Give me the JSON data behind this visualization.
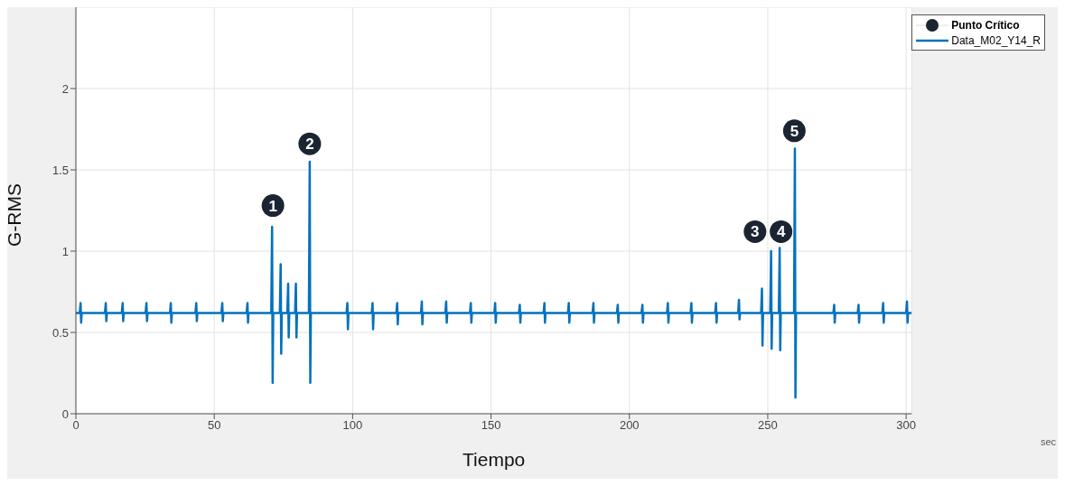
{
  "chart_data": {
    "type": "line",
    "xlabel": "Tiempo",
    "ylabel": "G-RMS",
    "annotations": [
      "sec",
      {
        "text": "1",
        "x": 71.2,
        "y": 1.28
      },
      {
        "text": "2",
        "x": 84.5,
        "y": 1.66
      },
      {
        "text": "3",
        "x": 245.4,
        "y": 1.12
      },
      {
        "text": "4",
        "x": 254.8,
        "y": 1.12
      },
      {
        "text": "5",
        "x": 259.6,
        "y": 1.74
      }
    ],
    "xlim": [
      0,
      302
    ],
    "xticks": [
      0,
      50,
      100,
      150,
      200,
      250,
      300
    ],
    "ylim": [
      0,
      2.5
    ],
    "yticks": [
      0,
      0.5,
      1,
      1.5,
      2
    ],
    "grid": true,
    "legend": "top right",
    "series": [
      {
        "name": "Punto Crítico",
        "type": "scatter",
        "color": "#1b2432",
        "marker": "circle",
        "x": [
          71.2,
          84.5,
          245.4,
          254.8,
          259.6
        ],
        "values": [
          1.28,
          1.66,
          1.12,
          1.12,
          1.74
        ]
      },
      {
        "name": "Data_M02_Y14_R",
        "color": "#0072bd",
        "marker": "none",
        "line_style": "solid",
        "x": [
          0,
          1.4,
          1.7,
          1.9,
          2.1,
          10.5,
          10.8,
          11.0,
          11.2,
          16.6,
          16.9,
          17.1,
          17.3,
          25.2,
          25.5,
          25.7,
          25.9,
          34.0,
          34.3,
          34.5,
          34.7,
          43.2,
          43.5,
          43.7,
          43.9,
          52.6,
          52.9,
          53.1,
          53.3,
          61.7,
          62.0,
          62.2,
          62.4,
          70.6,
          70.9,
          71.1,
          71.3,
          73.7,
          74.0,
          74.2,
          74.4,
          76.4,
          76.7,
          76.9,
          77.1,
          79.2,
          79.5,
          79.7,
          79.9,
          84.2,
          84.5,
          84.7,
          84.9,
          97.8,
          98.1,
          98.3,
          98.5,
          106.9,
          107.2,
          107.4,
          107.6,
          115.8,
          116.1,
          116.3,
          116.5,
          124.7,
          125.0,
          125.2,
          125.4,
          133.5,
          133.8,
          134.0,
          134.2,
          142.4,
          142.7,
          142.9,
          143.1,
          151.2,
          151.5,
          151.7,
          151.9,
          160.1,
          160.4,
          160.6,
          160.8,
          169.0,
          169.3,
          169.5,
          169.7,
          177.8,
          178.1,
          178.3,
          178.5,
          186.7,
          187.0,
          187.2,
          187.4,
          195.5,
          195.8,
          196.0,
          196.2,
          204.4,
          204.7,
          204.9,
          205.1,
          213.6,
          213.9,
          214.1,
          214.3,
          222.1,
          222.4,
          222.6,
          222.8,
          231.0,
          231.3,
          231.5,
          231.7,
          239.3,
          239.6,
          239.8,
          240.0,
          247.6,
          247.9,
          248.1,
          248.3,
          250.9,
          251.2,
          251.4,
          251.6,
          254.0,
          254.3,
          254.5,
          254.7,
          259.5,
          259.8,
          260.0,
          260.2,
          273.7,
          274.0,
          274.2,
          274.4,
          282.5,
          282.8,
          283.0,
          283.2,
          291.4,
          291.7,
          291.9,
          292.1,
          300.0,
          300.3,
          300.5,
          300.7,
          302
        ],
        "values": [
          0.62,
          0.62,
          0.68,
          0.56,
          0.62,
          0.62,
          0.68,
          0.57,
          0.62,
          0.62,
          0.68,
          0.57,
          0.62,
          0.62,
          0.68,
          0.57,
          0.62,
          0.62,
          0.68,
          0.56,
          0.62,
          0.62,
          0.68,
          0.57,
          0.62,
          0.62,
          0.68,
          0.57,
          0.62,
          0.62,
          0.68,
          0.56,
          0.62,
          0.62,
          1.15,
          0.19,
          0.62,
          0.62,
          0.92,
          0.37,
          0.62,
          0.62,
          0.8,
          0.47,
          0.62,
          0.62,
          0.8,
          0.47,
          0.62,
          0.62,
          1.55,
          0.19,
          0.62,
          0.62,
          0.68,
          0.52,
          0.62,
          0.62,
          0.68,
          0.52,
          0.62,
          0.62,
          0.68,
          0.55,
          0.62,
          0.62,
          0.69,
          0.55,
          0.62,
          0.62,
          0.69,
          0.56,
          0.62,
          0.62,
          0.68,
          0.56,
          0.62,
          0.62,
          0.68,
          0.56,
          0.62,
          0.62,
          0.67,
          0.56,
          0.62,
          0.62,
          0.68,
          0.56,
          0.62,
          0.62,
          0.68,
          0.56,
          0.62,
          0.62,
          0.68,
          0.56,
          0.62,
          0.62,
          0.67,
          0.56,
          0.62,
          0.62,
          0.67,
          0.56,
          0.62,
          0.62,
          0.68,
          0.56,
          0.62,
          0.62,
          0.68,
          0.56,
          0.62,
          0.62,
          0.68,
          0.56,
          0.62,
          0.62,
          0.7,
          0.58,
          0.62,
          0.62,
          0.77,
          0.42,
          0.62,
          0.62,
          1.0,
          0.4,
          0.62,
          0.62,
          1.02,
          0.39,
          0.62,
          0.62,
          1.63,
          0.1,
          0.62,
          0.62,
          0.67,
          0.56,
          0.62,
          0.62,
          0.67,
          0.56,
          0.62,
          0.62,
          0.68,
          0.56,
          0.62,
          0.62,
          0.69,
          0.56,
          0.62,
          0.62
        ]
      }
    ]
  }
}
